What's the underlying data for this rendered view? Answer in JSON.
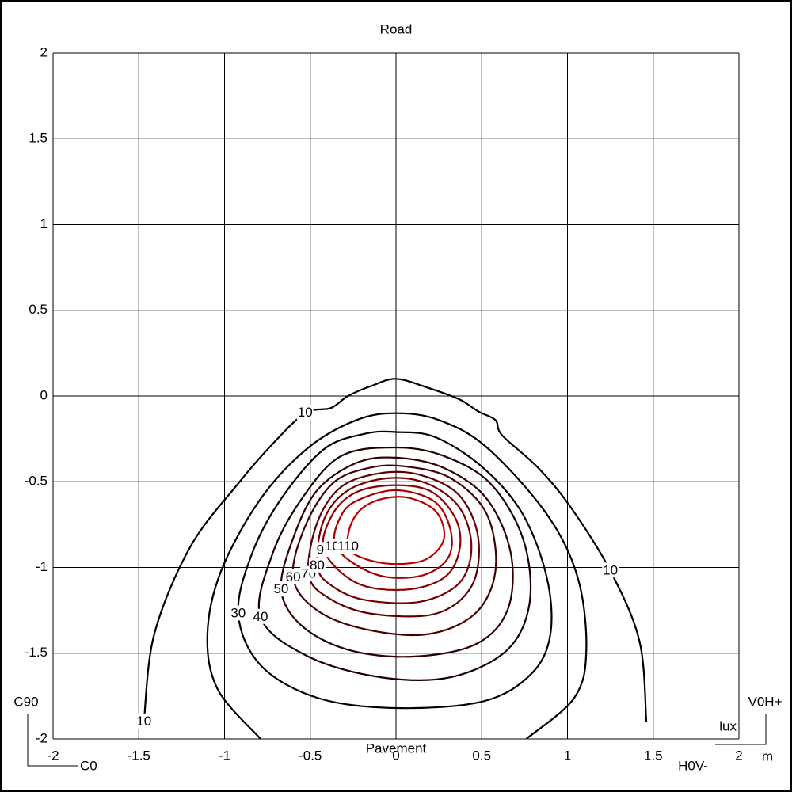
{
  "chart_data": {
    "type": "contour",
    "title": "Road",
    "x_label": "Pavement",
    "unit_label": "lux",
    "annotations": [
      "C90",
      "C0",
      "V0H+",
      "H0V-",
      "m"
    ],
    "xlim": [
      -2,
      2
    ],
    "ylim": [
      -2,
      2
    ],
    "xticks": [
      -2,
      -1.5,
      -1,
      -0.5,
      0,
      0.5,
      1,
      1.5,
      2
    ],
    "yticks": [
      -2,
      -1.5,
      -1,
      -0.5,
      0,
      0.5,
      1,
      1.5,
      2
    ],
    "grid": true,
    "contours": [
      {
        "level": 10,
        "color": "#000000",
        "closed": false,
        "x": [
          -1.47,
          -1.41,
          -1.2,
          -0.92,
          -0.72,
          -0.53,
          -0.38,
          -0.28,
          -0.14,
          0,
          0.18,
          0.37,
          0.48,
          0.58,
          0.62,
          0.83,
          1.02,
          1.25,
          1.42,
          1.46
        ],
        "y": [
          -1.9,
          -1.39,
          -0.88,
          -0.51,
          -0.28,
          -0.1,
          -0.07,
          0,
          0.06,
          0.1,
          0.05,
          -0.02,
          -0.09,
          -0.14,
          -0.23,
          -0.42,
          -0.65,
          -1.02,
          -1.43,
          -1.9
        ]
      },
      {
        "color": "#000000",
        "closed": false,
        "x": [
          -0.79,
          -1.04,
          -1.1,
          -1.02,
          -0.79,
          -0.51,
          -0.23,
          0,
          0.25,
          0.53,
          0.88,
          1.06,
          1.11,
          1.04,
          0.76
        ],
        "y": [
          -2.0,
          -1.71,
          -1.39,
          -1.02,
          -0.6,
          -0.3,
          -0.14,
          -0.1,
          -0.14,
          -0.3,
          -0.69,
          -1.06,
          -1.48,
          -1.76,
          -2.0
        ]
      },
      {
        "level": 30,
        "color": "#0a0000",
        "closed": true,
        "x": [
          -0.92,
          -0.84,
          -0.67,
          -0.42,
          -0.18,
          0,
          0.23,
          0.51,
          0.74,
          0.88,
          0.9,
          0.79,
          0.51,
          0,
          -0.46,
          -0.79
        ],
        "y": [
          -1.27,
          -0.92,
          -0.6,
          -0.31,
          -0.22,
          -0.21,
          -0.24,
          -0.42,
          -0.69,
          -1.06,
          -1.39,
          -1.62,
          -1.78,
          -1.82,
          -1.76,
          -1.57
        ]
      },
      {
        "level": 40,
        "color": "#1a0000",
        "closed": true,
        "x": [
          -0.79,
          -0.72,
          -0.55,
          -0.32,
          0,
          0.28,
          0.55,
          0.74,
          0.78,
          0.65,
          0.32,
          -0.09,
          -0.51
        ],
        "y": [
          -1.29,
          -0.92,
          -0.6,
          -0.35,
          -0.3,
          -0.35,
          -0.51,
          -0.83,
          -1.2,
          -1.48,
          -1.64,
          -1.64,
          -1.52
        ]
      },
      {
        "level": 50,
        "color": "#2e0000",
        "closed": true,
        "x": [
          -0.67,
          -0.6,
          -0.46,
          -0.23,
          0,
          0.28,
          0.53,
          0.67,
          0.65,
          0.46,
          0.09,
          -0.28,
          -0.55
        ],
        "y": [
          -1.13,
          -0.83,
          -0.55,
          -0.39,
          -0.36,
          -0.42,
          -0.6,
          -0.92,
          -1.25,
          -1.45,
          -1.52,
          -1.48,
          -1.34
        ]
      },
      {
        "level": 60,
        "color": "#440000",
        "closed": true,
        "x": [
          -0.6,
          -0.53,
          -0.37,
          -0.16,
          0.05,
          0.32,
          0.53,
          0.58,
          0.46,
          0.18,
          -0.18,
          -0.46
        ],
        "y": [
          -1.06,
          -0.76,
          -0.51,
          -0.42,
          -0.41,
          -0.48,
          -0.69,
          -1.02,
          -1.27,
          -1.39,
          -1.36,
          -1.25
        ]
      },
      {
        "level": 70,
        "color": "#5c0000",
        "closed": true,
        "x": [
          -0.51,
          -0.46,
          -0.32,
          -0.09,
          0.14,
          0.37,
          0.48,
          0.44,
          0.23,
          -0.14,
          -0.39
        ],
        "y": [
          -1.04,
          -0.74,
          -0.53,
          -0.45,
          -0.46,
          -0.58,
          -0.83,
          -1.11,
          -1.27,
          -1.27,
          -1.18
        ]
      },
      {
        "level": 80,
        "color": "#760000",
        "closed": true,
        "x": [
          -0.46,
          -0.42,
          -0.28,
          -0.05,
          0.18,
          0.37,
          0.44,
          0.37,
          0.14,
          -0.18,
          -0.37
        ],
        "y": [
          -0.99,
          -0.72,
          -0.55,
          -0.48,
          -0.51,
          -0.65,
          -0.88,
          -1.09,
          -1.2,
          -1.19,
          -1.11
        ]
      },
      {
        "level": 90,
        "color": "#900000",
        "closed": true,
        "x": [
          -0.42,
          -0.37,
          -0.23,
          0,
          0.21,
          0.35,
          0.37,
          0.28,
          0.05,
          -0.23
        ],
        "y": [
          -0.9,
          -0.69,
          -0.56,
          -0.52,
          -0.56,
          -0.72,
          -0.9,
          -1.06,
          -1.13,
          -1.09
        ]
      },
      {
        "level": 100,
        "color": "#a80000",
        "closed": true,
        "x": [
          -0.35,
          -0.31,
          -0.18,
          0.02,
          0.23,
          0.32,
          0.3,
          0.14,
          -0.12
        ],
        "y": [
          -0.88,
          -0.68,
          -0.59,
          -0.55,
          -0.62,
          -0.79,
          -0.95,
          -1.05,
          -1.04
        ]
      },
      {
        "level": 110,
        "color": "#c00000",
        "closed": true,
        "x": [
          -0.28,
          -0.25,
          -0.14,
          0.05,
          0.23,
          0.28,
          0.18,
          0,
          -0.18
        ],
        "y": [
          -0.88,
          -0.72,
          -0.62,
          -0.59,
          -0.67,
          -0.83,
          -0.95,
          -0.98,
          -0.95
        ]
      }
    ]
  }
}
